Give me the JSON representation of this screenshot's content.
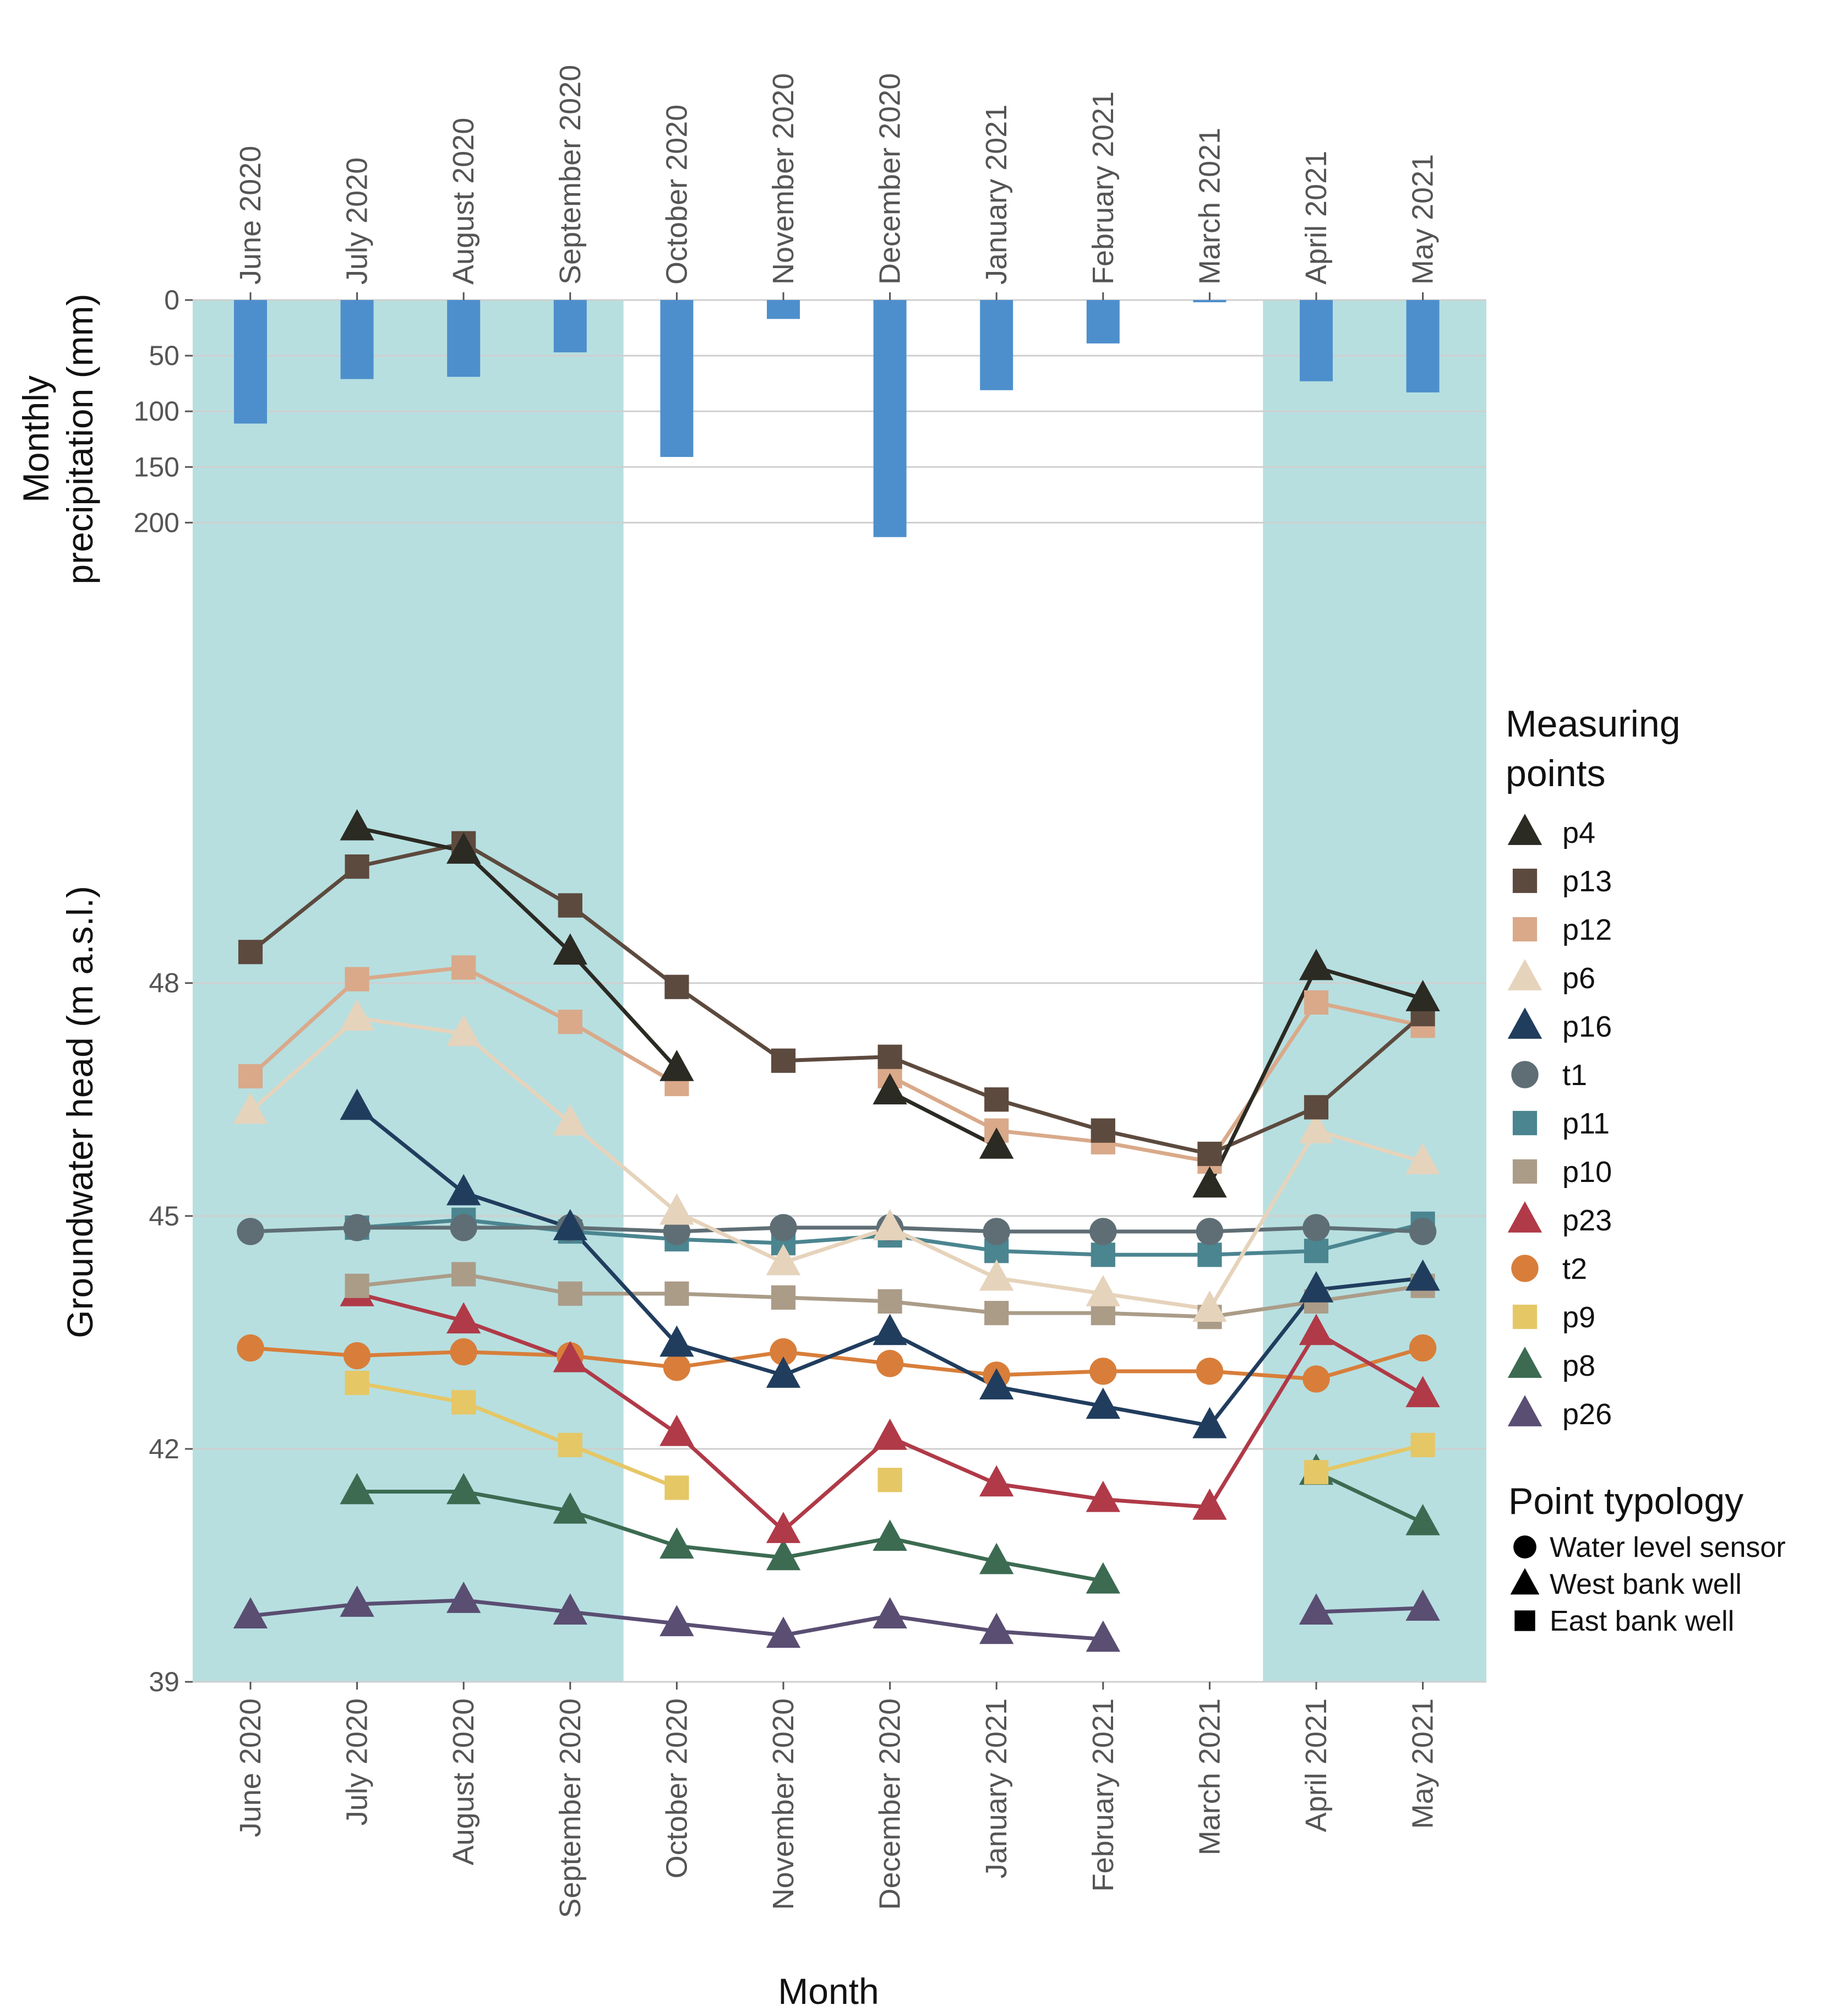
{
  "chart_data": [
    {
      "type": "bar",
      "ylabel_line1": "Monthly",
      "ylabel_line2": "precipitation (mm)",
      "ylim": [
        0,
        230
      ],
      "yticks": [
        0,
        50,
        100,
        150,
        200
      ],
      "yaxis_inverted": true,
      "categories": [
        "June 2020",
        "July 2020",
        "August 2020",
        "September 2020",
        "October 2020",
        "November 2020",
        "December 2020",
        "January 2021",
        "February 2021",
        "March 2021",
        "April 2021",
        "May 2021"
      ],
      "values": [
        111,
        71,
        69,
        47,
        141,
        17,
        213,
        81,
        39,
        2,
        73,
        83
      ],
      "bar_color": "#4d8fcc",
      "grid": true
    },
    {
      "type": "line",
      "xlabel": "Month",
      "ylabel": "Groundwater head (m a.s.l.)",
      "ylim": [
        39,
        53.5
      ],
      "yticks": [
        39,
        42,
        45,
        48
      ],
      "categories": [
        "June 2020",
        "July 2020",
        "August 2020",
        "September 2020",
        "October 2020",
        "November 2020",
        "December 2020",
        "January 2021",
        "February 2021",
        "March 2021",
        "April 2021",
        "May 2021"
      ],
      "shaded_periods": [
        {
          "from": "June 2020",
          "to": "September 2020"
        },
        {
          "from": "April 2021",
          "to": "May 2021"
        }
      ],
      "shade_color": "#b7dfe0",
      "grid": true,
      "series": [
        {
          "name": "p4",
          "shape": "triangle",
          "color": "#2b2a23",
          "values": [
            null,
            50.0,
            49.7,
            48.4,
            46.9,
            null,
            46.6,
            45.9,
            null,
            45.4,
            48.2,
            47.8
          ]
        },
        {
          "name": "p13",
          "shape": "square",
          "color": "#5d4a3e",
          "values": [
            48.4,
            49.5,
            49.8,
            49.0,
            47.95,
            47.0,
            47.05,
            46.5,
            46.1,
            45.8,
            46.4,
            47.6
          ]
        },
        {
          "name": "p12",
          "shape": "square",
          "color": "#d9a98a",
          "values": [
            46.8,
            48.05,
            48.2,
            47.5,
            46.7,
            null,
            46.8,
            46.1,
            45.95,
            45.7,
            47.75,
            47.45
          ]
        },
        {
          "name": "p6",
          "shape": "triangle",
          "color": "#e6d3bb",
          "values": [
            46.35,
            47.55,
            47.35,
            46.2,
            45.05,
            44.4,
            44.85,
            44.2,
            44.0,
            43.8,
            46.1,
            45.7
          ]
        },
        {
          "name": "p16",
          "shape": "triangle",
          "color": "#213d5e",
          "values": [
            null,
            46.4,
            45.3,
            44.85,
            43.35,
            42.95,
            43.5,
            42.8,
            42.55,
            42.3,
            44.05,
            44.2
          ]
        },
        {
          "name": "t1",
          "shape": "circle",
          "color": "#5f6e75",
          "values": [
            44.8,
            44.85,
            44.85,
            44.85,
            44.8,
            44.85,
            44.85,
            44.8,
            44.8,
            44.8,
            44.85,
            44.8
          ]
        },
        {
          "name": "p11",
          "shape": "square",
          "color": "#4b8590",
          "values": [
            null,
            44.85,
            44.95,
            44.8,
            44.7,
            44.65,
            44.75,
            44.55,
            44.5,
            44.5,
            44.55,
            44.9
          ]
        },
        {
          "name": "p10",
          "shape": "square",
          "color": "#ab9c88",
          "values": [
            null,
            44.1,
            44.25,
            44.0,
            44.0,
            43.95,
            43.9,
            43.75,
            43.75,
            43.7,
            43.9,
            44.1
          ]
        },
        {
          "name": "p23",
          "shape": "triangle",
          "color": "#b03a48",
          "values": [
            null,
            44.0,
            43.65,
            43.15,
            42.2,
            40.95,
            42.15,
            41.55,
            41.35,
            41.25,
            43.5,
            42.7
          ]
        },
        {
          "name": "t2",
          "shape": "circle",
          "color": "#d87e3a",
          "values": [
            43.3,
            43.2,
            43.25,
            43.2,
            43.05,
            43.25,
            43.1,
            42.95,
            43.0,
            43.0,
            42.9,
            43.3
          ]
        },
        {
          "name": "p9",
          "shape": "square",
          "color": "#e5c766",
          "values": [
            null,
            42.85,
            42.6,
            42.05,
            41.5,
            null,
            41.6,
            null,
            null,
            null,
            41.7,
            42.05
          ]
        },
        {
          "name": "p8",
          "shape": "triangle",
          "color": "#3c6b52",
          "values": [
            null,
            41.45,
            41.45,
            41.2,
            40.75,
            40.6,
            40.85,
            40.55,
            40.3,
            null,
            41.7,
            41.05
          ]
        },
        {
          "name": "p26",
          "shape": "triangle",
          "color": "#5a4e72",
          "values": [
            39.85,
            40.0,
            40.05,
            39.9,
            39.75,
            39.6,
            39.85,
            39.65,
            39.55,
            null,
            39.9,
            39.95
          ]
        }
      ]
    }
  ],
  "legend": {
    "title_line1": "Measuring",
    "title_line2": "points",
    "placement": "right",
    "typology_title": "Point typology",
    "typology": [
      {
        "shape": "circle",
        "label": "Water level sensor"
      },
      {
        "shape": "triangle",
        "label": "West bank well"
      },
      {
        "shape": "square",
        "label": "East bank well"
      }
    ]
  }
}
